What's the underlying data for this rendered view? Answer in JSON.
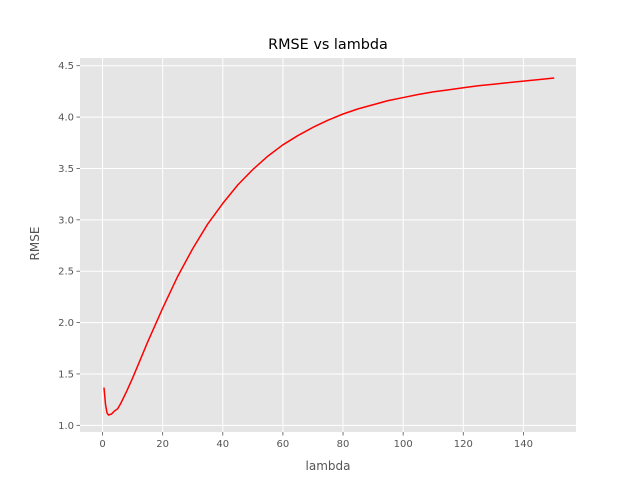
{
  "chart_data": {
    "type": "line",
    "title": "RMSE vs lambda",
    "xlabel": "lambda",
    "ylabel": "RMSE",
    "xlim": [
      -7.5,
      157.5
    ],
    "ylim": [
      0.935,
      4.575
    ],
    "xticks": [
      0,
      20,
      40,
      60,
      80,
      100,
      120,
      140
    ],
    "yticks": [
      1.0,
      1.5,
      2.0,
      2.5,
      3.0,
      3.5,
      4.0,
      4.5
    ],
    "grid": true,
    "series": [
      {
        "color": "#ff0000",
        "x": [
          0.5,
          1.0,
          1.5,
          2.0,
          3.0,
          4.0,
          5.0,
          6.0,
          8.0,
          10.0,
          12.0,
          15.0,
          20.0,
          25.0,
          30.0,
          35.0,
          40.0,
          45.0,
          50.0,
          55.0,
          60.0,
          65.0,
          70.0,
          75.0,
          80.0,
          85.0,
          90.0,
          95.0,
          100.0,
          105.0,
          110.0,
          115.0,
          120.0,
          125.0,
          130.0,
          135.0,
          140.0,
          145.0,
          150.0
        ],
        "y": [
          1.36,
          1.2,
          1.12,
          1.1,
          1.11,
          1.14,
          1.16,
          1.21,
          1.33,
          1.46,
          1.6,
          1.81,
          2.14,
          2.45,
          2.72,
          2.96,
          3.16,
          3.34,
          3.49,
          3.62,
          3.73,
          3.82,
          3.9,
          3.97,
          4.03,
          4.08,
          4.12,
          4.16,
          4.19,
          4.22,
          4.245,
          4.265,
          4.285,
          4.305,
          4.32,
          4.335,
          4.35,
          4.365,
          4.38
        ]
      }
    ]
  }
}
